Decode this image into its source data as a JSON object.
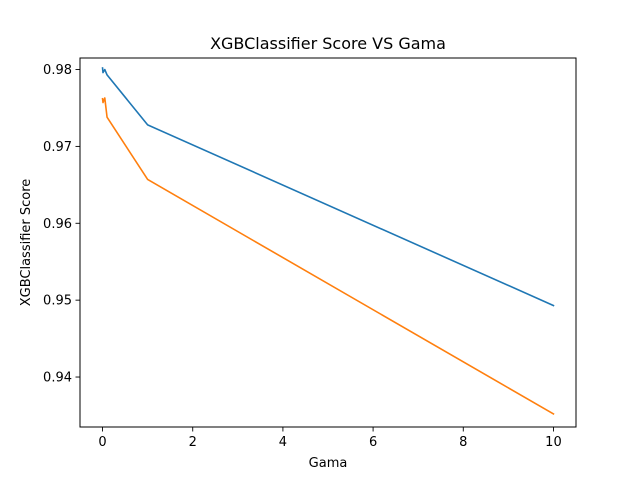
{
  "chart_data": {
    "type": "line",
    "title": "XGBClassifier Score VS Gama",
    "xlabel": "Gama",
    "ylabel": "XGBClassifier Score",
    "xlim": [
      -0.5,
      10.5
    ],
    "ylim": [
      0.9335,
      0.9815
    ],
    "xticks": [
      0,
      2,
      4,
      6,
      8,
      10
    ],
    "yticks": [
      0.94,
      0.95,
      0.96,
      0.97,
      0.98
    ],
    "grid": false,
    "legend": "none",
    "series": [
      {
        "color": "#1f77b4",
        "x": [
          0,
          0.01,
          0.05,
          0.1,
          1,
          10
        ],
        "y": [
          0.9802,
          0.9796,
          0.98,
          0.9793,
          0.9728,
          0.9493
        ]
      },
      {
        "color": "#ff7f0e",
        "x": [
          0,
          0.01,
          0.05,
          0.1,
          1,
          10
        ],
        "y": [
          0.9762,
          0.9757,
          0.9763,
          0.9738,
          0.9657,
          0.9352
        ]
      }
    ]
  }
}
